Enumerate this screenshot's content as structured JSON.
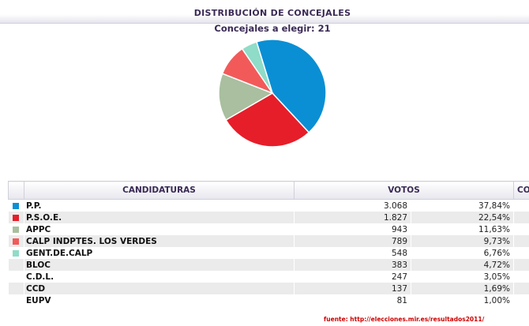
{
  "title": "DISTRIBUCIÓN DE CONCEJALES",
  "subtitle": "Concejales a elegir: 21",
  "table": {
    "headers": [
      "CANDIDATURAS",
      "VOTOS",
      "",
      "CON"
    ]
  },
  "rows": [
    {
      "name": "P.P.",
      "votes": "3.068",
      "pct": "37,84%",
      "color": "#0a8fd4"
    },
    {
      "name": "P.S.O.E.",
      "votes": "1.827",
      "pct": "22,54%",
      "color": "#e61e2a"
    },
    {
      "name": "APPC",
      "votes": "943",
      "pct": "11,63%",
      "color": "#a9bf9f"
    },
    {
      "name": "CALP INDPTES. LOS VERDES",
      "votes": "789",
      "pct": "9,73%",
      "color": "#f25a5a"
    },
    {
      "name": "GENT.DE.CALP",
      "votes": "548",
      "pct": "6,76%",
      "color": "#8fdcc8"
    },
    {
      "name": "BLOC",
      "votes": "383",
      "pct": "4,72%",
      "color": ""
    },
    {
      "name": "C.D.L.",
      "votes": "247",
      "pct": "3,05%",
      "color": ""
    },
    {
      "name": "CCD",
      "votes": "137",
      "pct": "1,69%",
      "color": ""
    },
    {
      "name": "EUPV",
      "votes": "81",
      "pct": "1,00%",
      "color": ""
    }
  ],
  "source": "fuente: http://elecciones.mir.es/resultados2011/",
  "chart_data": {
    "type": "pie",
    "categories": [
      "P.P.",
      "P.S.O.E.",
      "APPC",
      "CALP INDPTES. LOS VERDES",
      "GENT.DE.CALP"
    ],
    "values": [
      9,
      6,
      3,
      2,
      1
    ],
    "colors": [
      "#0a8fd4",
      "#e61e2a",
      "#a9bf9f",
      "#f25a5a",
      "#8fdcc8"
    ],
    "title": "DISTRIBUCIÓN DE CONCEJALES",
    "subtitle": "Concejales a elegir: 21"
  }
}
